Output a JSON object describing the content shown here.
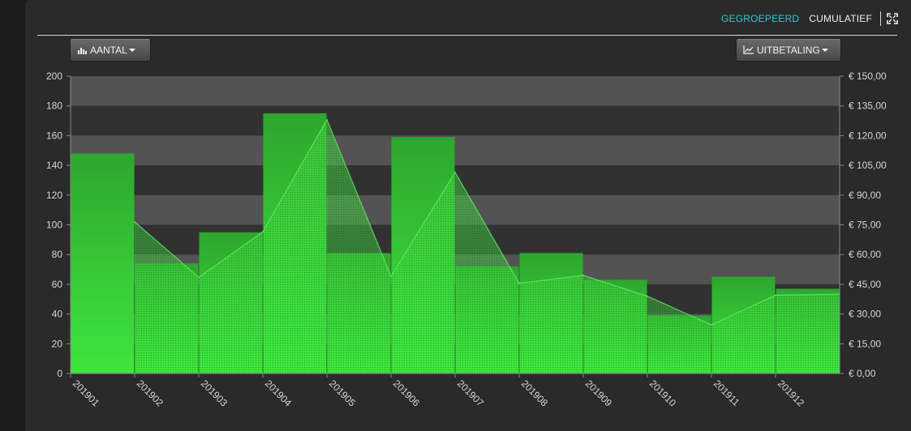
{
  "header": {
    "tabs": [
      {
        "label": "GEGROEPEERD",
        "active": true,
        "color": "#35c6d8"
      },
      {
        "label": "CUMULATIEF",
        "active": false,
        "color": "#f2f2f2"
      }
    ],
    "fullscreen_icon": "fullscreen-icon"
  },
  "controls": {
    "left_button": {
      "label": "AANTAL",
      "icon": "bar-chart-icon"
    },
    "right_button": {
      "label": "UITBETALING",
      "icon": "line-chart-icon"
    }
  },
  "colors": {
    "bar_top": "#2ea62e",
    "bar_bottom": "#3ee63e",
    "band_light": "#545354",
    "band_dark": "#323132",
    "axis_text": "#d7d7d7"
  },
  "chart_data": {
    "type": "bar",
    "categories": [
      "201901",
      "201902",
      "201903",
      "201904",
      "201905",
      "201906",
      "201907",
      "201908",
      "201909",
      "201910",
      "201911",
      "201912"
    ],
    "series": [
      {
        "name": "",
        "type": "bar",
        "axis": "left",
        "values": [
          148,
          74,
          95,
          175,
          81,
          159,
          72,
          81,
          63,
          39,
          65,
          57
        ]
      },
      {
        "name": "",
        "type": "area",
        "axis": "right",
        "values": [
          76.5,
          48.5,
          71.5,
          128,
          49,
          101.5,
          45.5,
          49.5,
          39,
          24.5,
          39.5,
          40
        ]
      }
    ],
    "y_left": {
      "min": 0,
      "max": 200,
      "ticks": [
        "0",
        "20",
        "40",
        "60",
        "80",
        "100",
        "120",
        "140",
        "160",
        "180",
        "200"
      ]
    },
    "y_right": {
      "min": 0,
      "max": 150,
      "ticks": [
        "€ 0,00",
        "€ 15,00",
        "€ 30,00",
        "€ 45,00",
        "€ 60,00",
        "€ 75,00",
        "€ 90,00",
        "€ 105,00",
        "€ 120,00",
        "€ 135,00",
        "€ 150,00"
      ]
    },
    "title": "",
    "xlabel": "",
    "ylabel": "",
    "grid": "alternating horizontal bands",
    "legend": "none"
  }
}
